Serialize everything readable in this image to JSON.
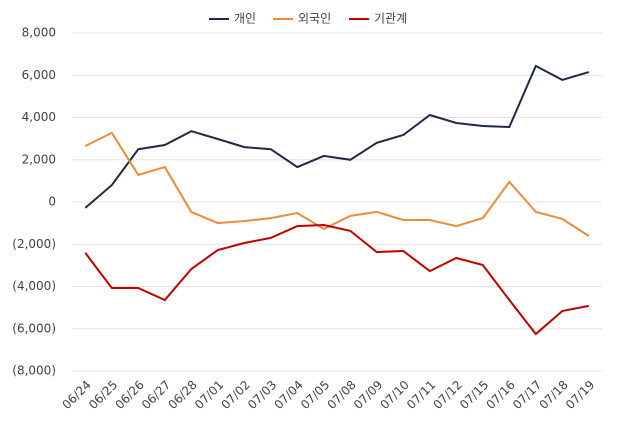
{
  "chart_data": {
    "type": "line",
    "categories": [
      "06/24",
      "06/25",
      "06/26",
      "06/27",
      "06/28",
      "07/01",
      "07/02",
      "07/03",
      "07/04",
      "07/05",
      "07/08",
      "07/09",
      "07/10",
      "07/11",
      "07/12",
      "07/15",
      "07/16",
      "07/17",
      "07/18",
      "07/19"
    ],
    "series": [
      {
        "name": "개인",
        "color": "#1f2a44",
        "values": [
          -280,
          800,
          2500,
          2700,
          3350,
          2980,
          2600,
          2500,
          1650,
          2180,
          2000,
          2800,
          3170,
          4120,
          3740,
          3600,
          3550,
          6440,
          5780,
          6150
        ]
      },
      {
        "name": "외국인",
        "color": "#ed8b3b",
        "values": [
          2650,
          3270,
          1280,
          1650,
          -470,
          -1000,
          -900,
          -760,
          -520,
          -1280,
          -660,
          -470,
          -850,
          -850,
          -1140,
          -760,
          950,
          -470,
          -800,
          -1610
        ]
      },
      {
        "name": "기관계",
        "color": "#c00000",
        "values": [
          -2410,
          -4070,
          -4070,
          -4640,
          -3170,
          -2270,
          -1940,
          -1700,
          -1140,
          -1090,
          -1370,
          -2370,
          -2320,
          -3270,
          -2650,
          -2980,
          -4640,
          -6250,
          -5160,
          -4920
        ]
      }
    ],
    "ylim": [
      -8000,
      8000
    ],
    "yticks": [
      {
        "value": -8000,
        "label": "(8,000)"
      },
      {
        "value": -6000,
        "label": "(6,000)"
      },
      {
        "value": -4000,
        "label": "(4,000)"
      },
      {
        "value": -2000,
        "label": "(2,000)"
      },
      0,
      {
        "value": 2000,
        "label": "2,000"
      },
      {
        "value": 4000,
        "label": "4,000"
      },
      {
        "value": 6000,
        "label": "6,000"
      },
      {
        "value": 8000,
        "label": "8,000"
      }
    ],
    "grid": true,
    "legend": "top"
  }
}
